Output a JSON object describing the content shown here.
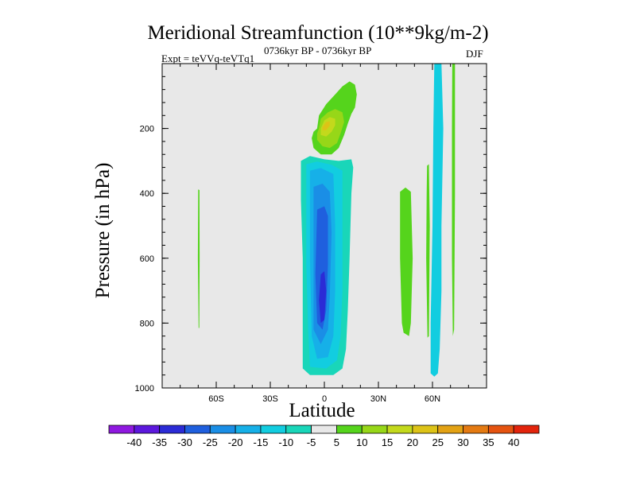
{
  "chart_data": {
    "type": "contour",
    "title": "Meridional Streamfunction (10**9kg/m-2)",
    "experiment_label": "Expt = teVVq-teVTq1",
    "period_label": "0736kyr BP - 0736kyr BP",
    "season_label": "DJF",
    "xlabel": "Latitude",
    "ylabel": "Pressure (in hPa)",
    "xlim": [
      -90,
      90
    ],
    "ylim": [
      1000,
      0
    ],
    "x_ticks": [
      -60,
      -30,
      0,
      30,
      60
    ],
    "x_tick_labels": [
      "60S",
      "30S",
      "0",
      "30N",
      "60N"
    ],
    "y_ticks": [
      200,
      400,
      600,
      800,
      1000
    ],
    "y_tick_labels": [
      "200",
      "400",
      "600",
      "800",
      "1000"
    ],
    "background_color": "#e8e8e8",
    "colorbar": {
      "levels": [
        -40,
        -35,
        -30,
        -25,
        -20,
        -15,
        -10,
        -5,
        5,
        10,
        15,
        20,
        25,
        30,
        35,
        40
      ],
      "level_labels": [
        "-40",
        "-35",
        "-30",
        "-25",
        "-20",
        "-15",
        "-10",
        "-5",
        "5",
        "10",
        "15",
        "20",
        "25",
        "30",
        "35",
        "40"
      ],
      "colors": [
        "#8f19e0",
        "#5c18dd",
        "#2b2bd6",
        "#1f5fde",
        "#1a8ee6",
        "#16b0e8",
        "#12cde0",
        "#19d6b9",
        "#e8e8e8",
        "#55d41c",
        "#97d718",
        "#c3d91c",
        "#ddc317",
        "#e3a214",
        "#e47a12",
        "#e55310",
        "#e3240c"
      ]
    },
    "features": [
      {
        "name": "upper-tropical-positive-cell",
        "value_range": [
          5,
          25
        ],
        "outline": [
          [
            -4,
            200
          ],
          [
            -3,
            160
          ],
          [
            1,
            125
          ],
          [
            6,
            95
          ],
          [
            10,
            70
          ],
          [
            14,
            55
          ],
          [
            17,
            65
          ],
          [
            18,
            95
          ],
          [
            17,
            135
          ],
          [
            15,
            155
          ],
          [
            13,
            185
          ],
          [
            11,
            220
          ],
          [
            8,
            260
          ],
          [
            4,
            280
          ],
          [
            -2,
            280
          ],
          [
            -6,
            260
          ],
          [
            -7,
            230
          ],
          [
            -6,
            210
          ]
        ],
        "levels": [
          {
            "value": 5,
            "poly": [
              [
                -4,
                200
              ],
              [
                -3,
                160
              ],
              [
                1,
                125
              ],
              [
                6,
                95
              ],
              [
                10,
                70
              ],
              [
                14,
                55
              ],
              [
                17,
                65
              ],
              [
                18,
                95
              ],
              [
                17,
                135
              ],
              [
                15,
                155
              ],
              [
                13,
                185
              ],
              [
                11,
                220
              ],
              [
                8,
                260
              ],
              [
                4,
                280
              ],
              [
                -2,
                280
              ],
              [
                -6,
                260
              ],
              [
                -7,
                230
              ],
              [
                -6,
                210
              ]
            ]
          },
          {
            "value": 10,
            "poly": [
              [
                -3,
                200
              ],
              [
                -2,
                170
              ],
              [
                2,
                150
              ],
              [
                6,
                140
              ],
              [
                10,
                150
              ],
              [
                11,
                180
              ],
              [
                9,
                215
              ],
              [
                7,
                245
              ],
              [
                3,
                260
              ],
              [
                -1,
                255
              ],
              [
                -4,
                235
              ],
              [
                -4,
                215
              ]
            ]
          },
          {
            "value": 15,
            "poly": [
              [
                -2,
                200
              ],
              [
                0,
                175
              ],
              [
                3,
                165
              ],
              [
                6,
                170
              ],
              [
                6,
                190
              ],
              [
                4,
                210
              ],
              [
                1,
                225
              ],
              [
                -2,
                220
              ]
            ]
          },
          {
            "value": 20,
            "poly": [
              [
                -1,
                195
              ],
              [
                1,
                180
              ],
              [
                3,
                178
              ],
              [
                3,
                192
              ],
              [
                1,
                205
              ],
              [
                -1,
                205
              ]
            ]
          }
        ]
      },
      {
        "name": "tropical-negative-cell",
        "value_range": [
          -30,
          -5
        ],
        "levels": [
          {
            "value": -5,
            "poly": [
              [
                -13,
                300
              ],
              [
                -8,
                285
              ],
              [
                0,
                295
              ],
              [
                8,
                300
              ],
              [
                15,
                295
              ],
              [
                16,
                320
              ],
              [
                15,
                400
              ],
              [
                14,
                600
              ],
              [
                13,
                760
              ],
              [
                12,
                880
              ],
              [
                10,
                940
              ],
              [
                5,
                960
              ],
              [
                -8,
                960
              ],
              [
                -12,
                940
              ],
              [
                -12,
                800
              ],
              [
                -12,
                600
              ],
              [
                -13,
                420
              ]
            ]
          },
          {
            "value": -10,
            "poly": [
              [
                -10,
                310
              ],
              [
                -4,
                302
              ],
              [
                4,
                312
              ],
              [
                10,
                330
              ],
              [
                10,
                500
              ],
              [
                10,
                700
              ],
              [
                9,
                840
              ],
              [
                7,
                915
              ],
              [
                1,
                940
              ],
              [
                -8,
                935
              ],
              [
                -9,
                820
              ],
              [
                -10,
                620
              ]
            ]
          },
          {
            "value": -15,
            "poly": [
              [
                -8,
                330
              ],
              [
                -2,
                322
              ],
              [
                5,
                340
              ],
              [
                6,
                500
              ],
              [
                6,
                700
              ],
              [
                5,
                840
              ],
              [
                2,
                905
              ],
              [
                -4,
                910
              ],
              [
                -7,
                840
              ],
              [
                -8,
                600
              ]
            ]
          },
          {
            "value": -20,
            "poly": [
              [
                -6,
                380
              ],
              [
                -1,
                370
              ],
              [
                3,
                395
              ],
              [
                4,
                520
              ],
              [
                3,
                720
              ],
              [
                2,
                820
              ],
              [
                -2,
                865
              ],
              [
                -6,
                820
              ],
              [
                -6,
                600
              ]
            ]
          },
          {
            "value": -25,
            "poly": [
              [
                -4,
                450
              ],
              [
                0,
                440
              ],
              [
                2,
                470
              ],
              [
                2,
                620
              ],
              [
                1,
                760
              ],
              [
                -1,
                820
              ],
              [
                -4,
                800
              ],
              [
                -5,
                650
              ]
            ]
          },
          {
            "value": -30,
            "poly": [
              [
                -2,
                650
              ],
              [
                0,
                640
              ],
              [
                1,
                700
              ],
              [
                0,
                790
              ],
              [
                -2,
                800
              ],
              [
                -3,
                730
              ]
            ]
          }
        ]
      },
      {
        "name": "southern-thin-positive",
        "value_range": [
          5,
          10
        ],
        "outline": [
          [
            -70,
            388
          ],
          [
            -69.3,
            390
          ],
          [
            -69.2,
            600
          ],
          [
            -69.4,
            815
          ],
          [
            -69.8,
            815
          ],
          [
            -70.2,
            600
          ]
        ]
      },
      {
        "name": "midlatitude-positive",
        "value_range": [
          5,
          10
        ],
        "outline": [
          [
            42,
            395
          ],
          [
            45,
            382
          ],
          [
            48,
            395
          ],
          [
            49,
            600
          ],
          [
            48,
            800
          ],
          [
            47,
            840
          ],
          [
            44,
            830
          ],
          [
            43,
            800
          ],
          [
            42,
            600
          ]
        ]
      },
      {
        "name": "northern-negative-column",
        "value_range": [
          -10,
          -5
        ],
        "outline": [
          [
            61,
            0
          ],
          [
            65,
            0
          ],
          [
            66,
            200
          ],
          [
            65,
            500
          ],
          [
            65,
            700
          ],
          [
            64,
            880
          ],
          [
            63,
            955
          ],
          [
            61,
            965
          ],
          [
            59,
            955
          ],
          [
            59,
            800
          ],
          [
            60,
            500
          ],
          [
            60.5,
            200
          ]
        ]
      },
      {
        "name": "northern-positive-left-strip",
        "value_range": [
          5,
          10
        ],
        "outline": [
          [
            57,
            315
          ],
          [
            58,
            310
          ],
          [
            58.5,
            500
          ],
          [
            58,
            840
          ],
          [
            57.2,
            845
          ],
          [
            56.5,
            600
          ],
          [
            56.8,
            400
          ]
        ]
      },
      {
        "name": "northern-positive-right-strip",
        "value_range": [
          5,
          10
        ],
        "outline": [
          [
            71,
            0
          ],
          [
            72.5,
            0
          ],
          [
            72.5,
            400
          ],
          [
            72,
            820
          ],
          [
            71.3,
            840
          ],
          [
            70.8,
            600
          ],
          [
            70.8,
            200
          ]
        ]
      }
    ]
  }
}
